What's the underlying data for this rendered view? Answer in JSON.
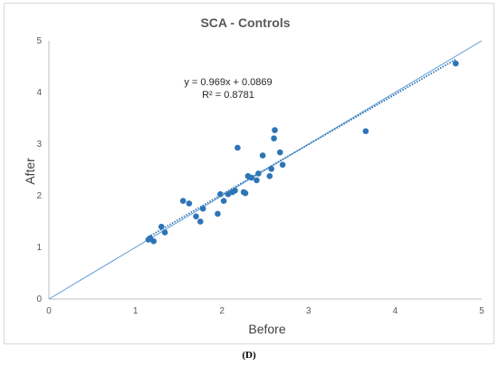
{
  "chart_data": {
    "type": "scatter",
    "title": "SCA - Controls",
    "xlabel": "Before",
    "ylabel": "After",
    "xlim": [
      0,
      5
    ],
    "ylim": [
      0,
      5
    ],
    "xticks": [
      "0",
      "1",
      "2",
      "3",
      "4",
      "5"
    ],
    "yticks": [
      "0",
      "1",
      "2",
      "3",
      "4",
      "5"
    ],
    "grid": false,
    "legend": "none",
    "points": [
      {
        "x": 1.15,
        "y": 1.15
      },
      {
        "x": 1.17,
        "y": 1.18
      },
      {
        "x": 1.21,
        "y": 1.12
      },
      {
        "x": 1.3,
        "y": 1.4
      },
      {
        "x": 1.34,
        "y": 1.29
      },
      {
        "x": 1.55,
        "y": 1.9
      },
      {
        "x": 1.62,
        "y": 1.85
      },
      {
        "x": 1.7,
        "y": 1.6
      },
      {
        "x": 1.75,
        "y": 1.5
      },
      {
        "x": 1.78,
        "y": 1.75
      },
      {
        "x": 1.95,
        "y": 1.65
      },
      {
        "x": 1.98,
        "y": 2.03
      },
      {
        "x": 2.02,
        "y": 1.9
      },
      {
        "x": 2.07,
        "y": 2.03
      },
      {
        "x": 2.12,
        "y": 2.07
      },
      {
        "x": 2.15,
        "y": 2.1
      },
      {
        "x": 2.18,
        "y": 2.93
      },
      {
        "x": 2.25,
        "y": 2.07
      },
      {
        "x": 2.27,
        "y": 2.05
      },
      {
        "x": 2.3,
        "y": 2.38
      },
      {
        "x": 2.34,
        "y": 2.35
      },
      {
        "x": 2.4,
        "y": 2.3
      },
      {
        "x": 2.42,
        "y": 2.43
      },
      {
        "x": 2.47,
        "y": 2.78
      },
      {
        "x": 2.55,
        "y": 2.38
      },
      {
        "x": 2.57,
        "y": 2.52
      },
      {
        "x": 2.6,
        "y": 3.11
      },
      {
        "x": 2.61,
        "y": 3.27
      },
      {
        "x": 2.67,
        "y": 2.84
      },
      {
        "x": 2.7,
        "y": 2.6
      },
      {
        "x": 3.66,
        "y": 3.25
      },
      {
        "x": 4.7,
        "y": 4.56
      }
    ],
    "trendline": {
      "slope": 0.969,
      "intercept": 0.0869,
      "x_range": [
        1.15,
        4.7
      ],
      "style": "dotted"
    },
    "identity_line": {
      "x_range": [
        0,
        5
      ],
      "style": "solid"
    },
    "annotations": [
      "y = 0.969x + 0.0869",
      "R² = 0.8781"
    ],
    "colors": {
      "points": "#2e75b6",
      "identity": "#5b9bd5",
      "trend": "#2e75b6",
      "axis": "#bfbfbf"
    }
  },
  "panel_label": "(D)"
}
